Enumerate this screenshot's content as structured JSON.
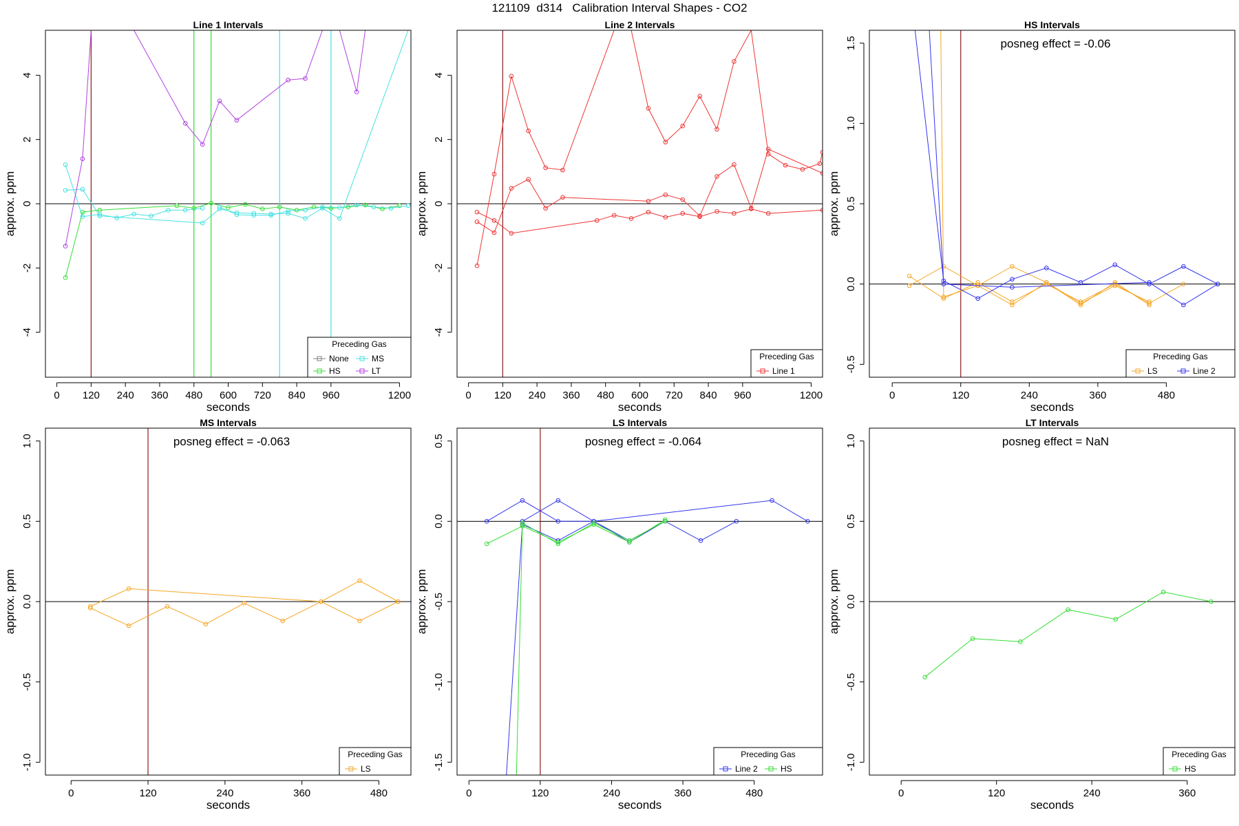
{
  "figure": {
    "title": "121109  d314   Calibration Interval Shapes - CO2"
  },
  "chart_data": [
    {
      "type": "line",
      "title": "Line 1 Intervals",
      "xlabel": "seconds",
      "ylabel": "approx. ppm",
      "xlim": [
        -40,
        1240
      ],
      "ylim": [
        -5.4,
        5.4
      ],
      "xticks": [
        0,
        120,
        240,
        360,
        480,
        600,
        720,
        840,
        960,
        1200
      ],
      "yticks": [
        -4,
        -2,
        0,
        2,
        4
      ],
      "annotation": "",
      "hline": 0,
      "vlines": [
        {
          "x": 120,
          "color": "#8b1a1a"
        },
        {
          "x": 480,
          "color": "#33dd33"
        },
        {
          "x": 540,
          "color": "#33dd33"
        },
        {
          "x": 780,
          "color": "#44e0e0"
        },
        {
          "x": 960,
          "color": "#44e0e0"
        }
      ],
      "legend": {
        "title": "Preceding Gas",
        "position": "bottom-right",
        "entries": [
          {
            "label": "None",
            "color": "#808080"
          },
          {
            "label": "MS",
            "color": "#44e0e0"
          },
          {
            "label": "HS",
            "color": "#33dd33"
          },
          {
            "label": "LT",
            "color": "#b040e0"
          }
        ]
      },
      "series": [
        {
          "color": "#33dd33",
          "x": [
            30,
            90,
            150,
            420,
            480,
            540,
            600,
            660,
            720,
            780,
            840,
            900,
            960,
            1020,
            1080,
            1140,
            1200
          ],
          "y": [
            -2.3,
            -0.26,
            -0.2,
            -0.06,
            -0.14,
            0.02,
            -0.12,
            -0.02,
            -0.16,
            -0.1,
            -0.2,
            -0.1,
            -0.14,
            -0.1,
            -0.04,
            -0.16,
            -0.06
          ]
        },
        {
          "color": "#44e0e0",
          "x": [
            30,
            90,
            150,
            210,
            270,
            330,
            390,
            450,
            510
          ],
          "y": [
            1.22,
            -0.4,
            -0.33,
            -0.44,
            -0.32,
            -0.38,
            -0.2,
            -0.2,
            -0.14
          ]
        },
        {
          "color": "#44e0e0",
          "x": [
            30,
            90,
            150,
            510,
            570,
            630,
            690,
            750,
            810,
            870,
            930,
            990,
            1230
          ],
          "y": [
            0.42,
            0.45,
            -0.38,
            -0.6,
            -0.16,
            -0.28,
            -0.3,
            -0.32,
            -0.3,
            -0.46,
            -0.14,
            -0.46,
            5.4
          ]
        },
        {
          "color": "#44e0e0",
          "x": [
            570,
            630,
            690,
            750,
            810,
            870,
            930,
            990,
            1050,
            1110,
            1170,
            1230
          ],
          "y": [
            -0.1,
            -0.34,
            -0.36,
            -0.36,
            -0.22,
            -0.2,
            -0.1,
            -0.12,
            -0.04,
            -0.1,
            -0.14,
            -0.06
          ]
        },
        {
          "color": "#b040e0",
          "x": [
            30,
            90,
            120
          ],
          "y": [
            -1.32,
            1.4,
            5.4
          ]
        },
        {
          "color": "#b040e0",
          "x": [
            270,
            450,
            510,
            570,
            630,
            810,
            870,
            930,
            990,
            1050,
            1080
          ],
          "y": [
            5.4,
            2.5,
            1.85,
            3.2,
            2.6,
            3.85,
            3.9,
            5.4,
            5.4,
            3.48,
            5.4
          ]
        }
      ]
    },
    {
      "type": "line",
      "title": "Line 2 Intervals",
      "xlabel": "seconds",
      "ylabel": "approx. ppm",
      "xlim": [
        -40,
        1240
      ],
      "ylim": [
        -5.4,
        5.4
      ],
      "xticks": [
        0,
        120,
        240,
        360,
        480,
        600,
        720,
        840,
        960,
        1200
      ],
      "yticks": [
        -4,
        -2,
        0,
        2,
        4
      ],
      "annotation": "",
      "hline": 0,
      "vlines": [
        {
          "x": 120,
          "color": "#8b1a1a"
        }
      ],
      "legend": {
        "title": "Preceding Gas",
        "position": "bottom-right",
        "entries": [
          {
            "label": "Line 1",
            "color": "#ee3333"
          }
        ]
      },
      "series": [
        {
          "color": "#ee3333",
          "x": [
            30,
            90,
            150,
            210,
            270,
            330,
            510,
            570,
            630,
            690,
            750,
            810,
            870,
            930,
            990,
            1050,
            1110,
            1170,
            1230,
            1240
          ],
          "y": [
            -1.93,
            0.92,
            3.97,
            2.27,
            1.12,
            1.05,
            5.4,
            5.4,
            2.97,
            1.92,
            2.42,
            3.35,
            2.32,
            4.43,
            5.4,
            1.55,
            1.2,
            1.07,
            1.25,
            1.6
          ]
        },
        {
          "color": "#ee3333",
          "x": [
            30,
            90,
            150,
            210,
            270,
            330,
            630,
            690,
            750,
            810,
            870,
            930,
            990,
            1050,
            1240
          ],
          "y": [
            -0.56,
            -0.9,
            0.48,
            0.76,
            -0.14,
            0.2,
            0.08,
            0.28,
            0.13,
            -0.38,
            0.85,
            1.22,
            -0.14,
            1.7,
            0.95
          ]
        },
        {
          "color": "#ee3333",
          "x": [
            30,
            90,
            150,
            450,
            510,
            570,
            630,
            690,
            750,
            810,
            870,
            930,
            990,
            1050,
            1240
          ],
          "y": [
            -0.26,
            -0.52,
            -0.92,
            -0.52,
            -0.36,
            -0.46,
            -0.26,
            -0.42,
            -0.3,
            -0.4,
            -0.24,
            -0.3,
            -0.16,
            -0.3,
            -0.2
          ]
        }
      ]
    },
    {
      "type": "line",
      "title": "HS Intervals",
      "xlabel": "seconds",
      "ylabel": "approx. ppm",
      "xlim": [
        -40,
        600
      ],
      "ylim": [
        -0.58,
        1.58
      ],
      "xticks": [
        0,
        120,
        240,
        360,
        480
      ],
      "yticks": [
        -0.5,
        0.0,
        0.5,
        1.0,
        1.5
      ],
      "annotation": "posneg effect = -0.06",
      "hline": 0,
      "vlines": [
        {
          "x": 120,
          "color": "#8b1a1a"
        }
      ],
      "legend": {
        "title": "Preceding Gas",
        "position": "bottom-right",
        "entries": [
          {
            "label": "LS",
            "color": "#f5a623"
          },
          {
            "label": "Line 2",
            "color": "#3333ee"
          }
        ]
      },
      "series": [
        {
          "color": "#f5a623",
          "x": [
            30,
            90,
            150,
            210,
            270,
            330,
            390,
            450,
            510
          ],
          "y": [
            0.05,
            -0.09,
            0.01,
            -0.11,
            0.0,
            -0.11,
            0.0,
            -0.12,
            0.0
          ]
        },
        {
          "color": "#f5a623",
          "x": [
            30,
            90,
            150,
            210,
            270,
            330,
            390,
            450
          ],
          "y": [
            -0.01,
            0.11,
            -0.01,
            0.11,
            0.01,
            -0.12,
            -0.01,
            -0.11
          ]
        },
        {
          "color": "#f5a623",
          "x": [
            85,
            90,
            150,
            210,
            270,
            330,
            390,
            450
          ],
          "y": [
            1.58,
            -0.08,
            -0.01,
            -0.13,
            0.01,
            -0.13,
            0.01,
            -0.13
          ]
        },
        {
          "color": "#3333ee",
          "x": [
            40,
            90,
            150,
            210,
            270,
            330,
            390,
            450,
            510,
            570
          ],
          "y": [
            1.58,
            0.02,
            -0.09,
            0.03,
            0.1,
            0.01,
            0.12,
            0.0,
            0.11,
            0.0
          ]
        },
        {
          "color": "#3333ee",
          "x": [
            65,
            90,
            210,
            450,
            510,
            570
          ],
          "y": [
            1.58,
            0.0,
            -0.02,
            0.01,
            -0.13,
            0.0
          ]
        }
      ]
    },
    {
      "type": "line",
      "title": "MS Intervals",
      "xlabel": "seconds",
      "ylabel": "approx. ppm",
      "xlim": [
        -40,
        530
      ],
      "ylim": [
        -1.08,
        1.08
      ],
      "xticks": [
        0,
        120,
        240,
        360,
        480
      ],
      "yticks": [
        -1.0,
        -0.5,
        0.0,
        0.5,
        1.0
      ],
      "annotation": "posneg effect = -0.063",
      "hline": 0,
      "vlines": [
        {
          "x": 120,
          "color": "#8b1a1a"
        }
      ],
      "legend": {
        "title": "Preceding Gas",
        "position": "bottom-right",
        "entries": [
          {
            "label": "LS",
            "color": "#f5a623"
          }
        ]
      },
      "series": [
        {
          "color": "#f5a623",
          "x": [
            30,
            90,
            390,
            450,
            510
          ],
          "y": [
            -0.03,
            0.08,
            0.0,
            0.13,
            0.0
          ]
        },
        {
          "color": "#f5a623",
          "x": [
            30,
            90,
            150,
            210,
            270,
            330,
            390,
            450,
            510
          ],
          "y": [
            -0.04,
            -0.15,
            -0.03,
            -0.14,
            -0.01,
            -0.12,
            0.0,
            -0.12,
            0.0
          ]
        }
      ]
    },
    {
      "type": "line",
      "title": "LS Intervals",
      "xlabel": "seconds",
      "ylabel": "approx. ppm",
      "xlim": [
        -20,
        595
      ],
      "ylim": [
        -1.58,
        0.58
      ],
      "xticks": [
        0,
        120,
        240,
        360,
        480
      ],
      "yticks": [
        -1.5,
        -1.0,
        -0.5,
        0.0,
        0.5
      ],
      "annotation": "posneg effect = -0.064",
      "hline": 0,
      "vlines": [
        {
          "x": 120,
          "color": "#8b1a1a"
        }
      ],
      "legend": {
        "title": "Preceding Gas",
        "position": "bottom-right",
        "entries": [
          {
            "label": "Line 2",
            "color": "#3333ee"
          },
          {
            "label": "HS",
            "color": "#33dd33"
          }
        ]
      },
      "series": [
        {
          "color": "#3333ee",
          "x": [
            30,
            90,
            150,
            210,
            510,
            570
          ],
          "y": [
            0.0,
            0.13,
            0.0,
            0.0,
            0.13,
            0.0
          ]
        },
        {
          "color": "#3333ee",
          "x": [
            90,
            150,
            210,
            270,
            330,
            390,
            450
          ],
          "y": [
            0.0,
            0.13,
            0.0,
            -0.12,
            0.0,
            -0.12,
            0.0
          ]
        },
        {
          "color": "#3333ee",
          "x": [
            63,
            90,
            150,
            210,
            270,
            330
          ],
          "y": [
            -1.58,
            -0.02,
            -0.12,
            0.0,
            -0.13,
            0.0
          ]
        },
        {
          "color": "#33dd33",
          "x": [
            30,
            90,
            150,
            210,
            270,
            330
          ],
          "y": [
            -0.14,
            -0.03,
            -0.13,
            -0.02,
            -0.13,
            0.01
          ]
        },
        {
          "color": "#33dd33",
          "x": [
            80,
            90,
            150,
            210,
            270,
            330
          ],
          "y": [
            -1.58,
            -0.01,
            -0.14,
            -0.01,
            -0.12,
            0.0
          ]
        }
      ]
    },
    {
      "type": "line",
      "title": "LT Intervals",
      "xlabel": "seconds",
      "ylabel": "approx. ppm",
      "xlim": [
        -40,
        420
      ],
      "ylim": [
        -1.08,
        1.08
      ],
      "xticks": [
        0,
        120,
        240,
        360
      ],
      "yticks": [
        -1.0,
        -0.5,
        0.0,
        0.5,
        1.0
      ],
      "annotation": "posneg effect = NaN",
      "hline": 0,
      "vlines": [],
      "legend": {
        "title": "Preceding Gas",
        "position": "bottom-right",
        "entries": [
          {
            "label": "HS",
            "color": "#33dd33"
          }
        ]
      },
      "series": [
        {
          "color": "#33dd33",
          "x": [
            30,
            90,
            150,
            210,
            270,
            330,
            390
          ],
          "y": [
            -0.47,
            -0.23,
            -0.25,
            -0.05,
            -0.11,
            0.06,
            0.0
          ]
        }
      ]
    }
  ]
}
